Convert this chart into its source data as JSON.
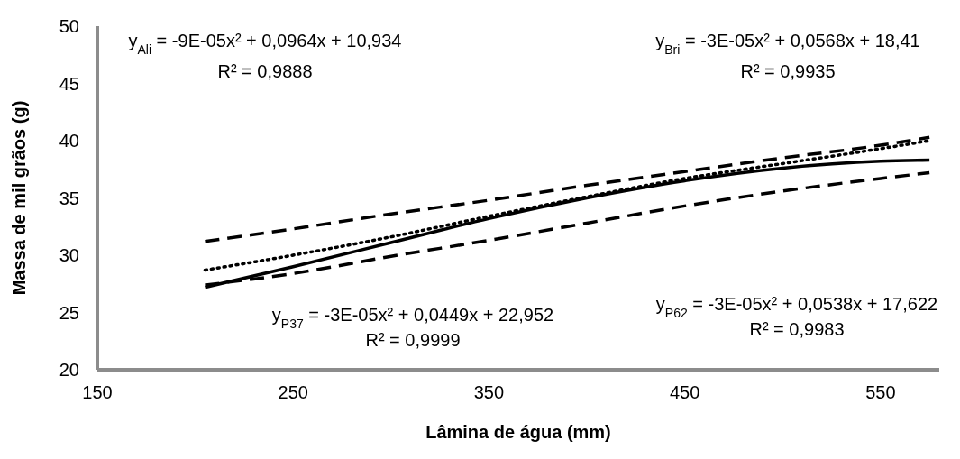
{
  "chart_data": {
    "type": "line",
    "xlabel": "Lâmina de água (mm)",
    "ylabel": "Massa de mil grãos (g)",
    "x": [
      205,
      250,
      300,
      350,
      400,
      450,
      500,
      550,
      575
    ],
    "series": [
      {
        "color": "#000000",
        "line_style": "solid",
        "values": [
          27.2,
          29.0,
          31.1,
          33.2,
          35.0,
          36.5,
          37.6,
          38.2,
          38.3
        ]
      },
      {
        "color": "#000000",
        "line_style": "dotted",
        "values": [
          28.7,
          30.0,
          31.6,
          33.4,
          35.1,
          36.7,
          38.0,
          39.3,
          40.0
        ]
      },
      {
        "color": "#000000",
        "line_style": "dashed",
        "values": [
          31.2,
          32.3,
          33.6,
          34.8,
          36.1,
          37.3,
          38.5,
          39.6,
          40.3
        ]
      },
      {
        "color": "#000000",
        "line_style": "dashed",
        "values": [
          27.4,
          28.4,
          29.9,
          31.3,
          32.8,
          34.3,
          35.6,
          36.7,
          37.2
        ]
      }
    ],
    "xlim": [
      150,
      580
    ],
    "xticks": [
      150,
      250,
      350,
      450,
      550
    ],
    "ylim": [
      20,
      50
    ],
    "yticks": [
      20,
      25,
      30,
      35,
      40,
      45,
      50
    ],
    "grid": false,
    "marker": "none",
    "annotations": [
      "y$_{Ali}$ = -9E-05x² + 0,0964x + 10,934",
      "R² = 0,9888",
      "y$_{Bri}$ = -3E-05x² + 0,0568x + 18,41",
      "R² = 0,9935",
      "y$_{P37}$ = -3E-05x² + 0,0449x + 22,952",
      "R² = 0,9999",
      "y$_{P62}$ = -3E-05x² + 0,0538x + 17,622",
      "R² = 0,9983"
    ]
  }
}
